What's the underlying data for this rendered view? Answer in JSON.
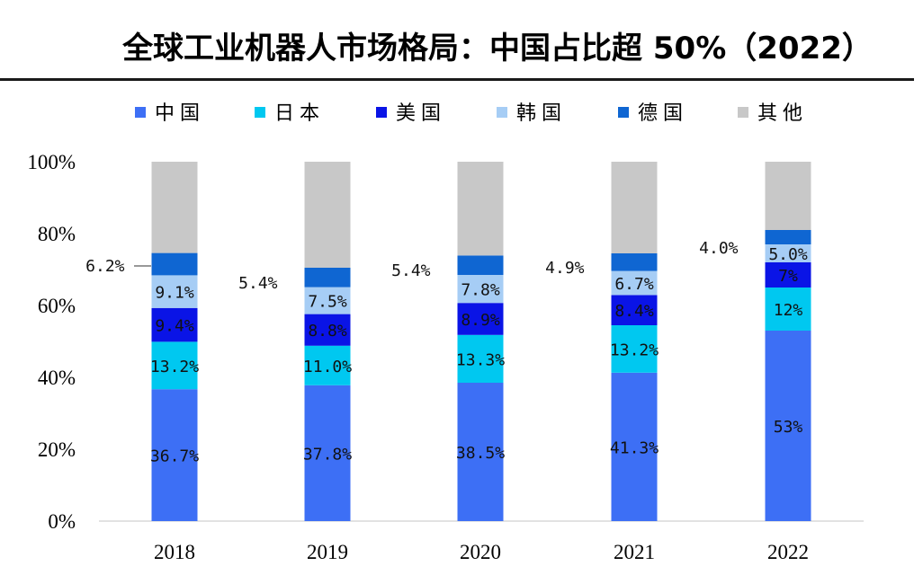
{
  "chart_data": {
    "type": "bar",
    "stacked": true,
    "title": "全球工业机器人市场格局：中国占比超 50%（2022）",
    "categories": [
      "2018",
      "2019",
      "2020",
      "2021",
      "2022"
    ],
    "ylim": [
      0,
      100
    ],
    "yticks": [
      "0%",
      "20%",
      "40%",
      "60%",
      "80%",
      "100%"
    ],
    "legend_position": "top",
    "series": [
      {
        "name": "中国",
        "color": "#3d6ff5",
        "values": [
          36.7,
          37.8,
          38.5,
          41.3,
          53
        ],
        "labels": [
          "36.7%",
          "37.8%",
          "38.5%",
          "41.3%",
          "53%"
        ]
      },
      {
        "name": "日本",
        "color": "#00c8f0",
        "values": [
          13.2,
          11.0,
          13.3,
          13.2,
          12
        ],
        "labels": [
          "13.2%",
          "11.0%",
          "13.3%",
          "13.2%",
          "12%"
        ]
      },
      {
        "name": "美国",
        "color": "#0a14e6",
        "values": [
          9.4,
          8.8,
          8.9,
          8.4,
          7
        ],
        "labels": [
          "9.4%",
          "8.8%",
          "8.9%",
          "8.4%",
          "7%"
        ]
      },
      {
        "name": "韩国",
        "color": "#a6cdf5",
        "values": [
          9.1,
          7.5,
          7.8,
          6.7,
          5.0
        ],
        "labels": [
          "9.1%",
          "7.5%",
          "7.8%",
          "6.7%",
          "5.0%"
        ]
      },
      {
        "name": "德国",
        "color": "#0f66d2",
        "values": [
          6.2,
          5.4,
          5.4,
          4.9,
          4.0
        ],
        "labels": [
          "6.2%",
          "5.4%",
          "5.4%",
          "4.9%",
          "4.0%"
        ]
      },
      {
        "name": "其他",
        "color": "#c8c8c8",
        "values": [
          25.4,
          29.5,
          26.1,
          25.5,
          19
        ],
        "labels": []
      }
    ]
  }
}
